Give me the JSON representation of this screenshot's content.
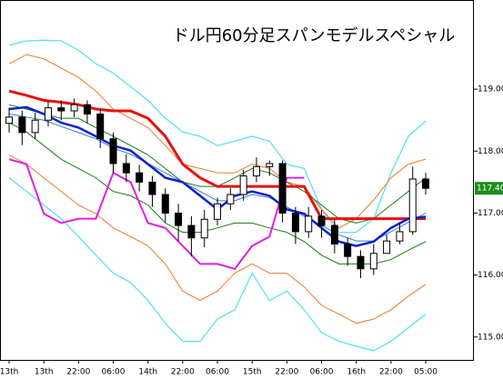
{
  "chart_data": {
    "type": "candlestick",
    "title": "ドル円60分足スパンモデルスペシャル",
    "xlim": [
      -2.1,
      107.1
    ],
    "xticks": [
      {
        "value": 0,
        "label": "13th"
      },
      {
        "value": 8,
        "label": "13th"
      },
      {
        "value": 16,
        "label": "22:00"
      },
      {
        "value": 24,
        "label": "06:00"
      },
      {
        "value": 32,
        "label": "14th"
      },
      {
        "value": 40,
        "label": "22:00"
      },
      {
        "value": 48,
        "label": "06:00"
      },
      {
        "value": 56,
        "label": "15th"
      },
      {
        "value": 64,
        "label": "22:00"
      },
      {
        "value": 72,
        "label": "06:00"
      },
      {
        "value": 80,
        "label": "16th"
      },
      {
        "value": 88,
        "label": "22:00"
      },
      {
        "value": 96,
        "label": "05:00"
      }
    ],
    "ylim": [
      114.63,
      120.44
    ],
    "yticks": [
      {
        "value": 115,
        "label": "115.00"
      },
      {
        "value": 116,
        "label": "116.00"
      },
      {
        "value": 117,
        "label": "117.00"
      },
      {
        "value": 118,
        "label": "118.00"
      },
      {
        "value": 119,
        "label": "119.00"
      }
    ],
    "last_price": {
      "value": 117.4,
      "label": "117.40",
      "color": "#1e8c1e"
    },
    "x": [
      0,
      4,
      8,
      12,
      16,
      20,
      24,
      28,
      32,
      36,
      40,
      44,
      48,
      52,
      56,
      60,
      64,
      68,
      72,
      76,
      80,
      84,
      88,
      92,
      96
    ],
    "series": [
      {
        "color": "#5fe0f0",
        "width": 1.3,
        "values": [
          119.71,
          119.78,
          119.79,
          119.78,
          119.63,
          119.41,
          119.26,
          119.04,
          118.82,
          118.53,
          118.31,
          118.24,
          118.09,
          118.16,
          118.24,
          118.16,
          117.79,
          117.72,
          117.06,
          116.69,
          116.69,
          116.91,
          117.65,
          118.24,
          118.49
        ]
      },
      {
        "color": "#5fe0f0",
        "width": 1.3,
        "values": [
          117.57,
          117.35,
          117.13,
          116.91,
          116.62,
          116.32,
          116.03,
          115.88,
          115.59,
          115.22,
          114.93,
          114.93,
          115.29,
          115.44,
          116.03,
          115.59,
          115.74,
          115.44,
          115.07,
          114.93,
          114.85,
          114.78,
          114.93,
          115.15,
          115.37
        ]
      },
      {
        "color": "#f07830",
        "width": 1,
        "values": [
          119.41,
          119.56,
          119.49,
          119.34,
          119.19,
          118.97,
          118.68,
          118.53,
          118.38,
          118.09,
          117.79,
          117.72,
          117.65,
          117.65,
          117.79,
          117.72,
          117.5,
          117.43,
          117.06,
          116.76,
          116.91,
          117.21,
          117.57,
          117.79,
          117.87
        ]
      },
      {
        "color": "#f07830",
        "width": 1,
        "values": [
          117.94,
          117.79,
          117.57,
          117.35,
          117.13,
          116.99,
          116.76,
          116.62,
          116.47,
          116.18,
          115.74,
          115.59,
          115.74,
          116.03,
          116.18,
          116.03,
          116.03,
          115.81,
          115.51,
          115.37,
          115.22,
          115.29,
          115.44,
          115.66,
          115.85
        ]
      },
      {
        "color": "#1a7a1a",
        "width": 1,
        "values": [
          118.75,
          118.68,
          118.6,
          118.53,
          118.53,
          118.38,
          118.24,
          118.09,
          117.94,
          117.72,
          117.5,
          117.43,
          117.43,
          117.57,
          117.72,
          117.65,
          117.5,
          117.35,
          117.13,
          116.91,
          116.84,
          116.91,
          117.13,
          117.35,
          117.57
        ]
      },
      {
        "color": "#1a7a1a",
        "width": 1,
        "values": [
          118.46,
          118.31,
          118.09,
          117.87,
          117.72,
          117.57,
          117.35,
          117.28,
          117.13,
          116.84,
          116.69,
          116.69,
          116.76,
          116.84,
          116.84,
          116.76,
          116.69,
          116.54,
          116.32,
          116.18,
          116.18,
          116.18,
          116.25,
          116.4,
          116.54
        ]
      },
      {
        "color": "#e81010",
        "width": 3,
        "values": [
          118.97,
          118.9,
          118.82,
          118.79,
          118.75,
          118.68,
          118.65,
          118.65,
          118.53,
          118.24,
          117.79,
          117.57,
          117.43,
          117.43,
          117.43,
          117.43,
          117.43,
          117.43,
          116.91,
          116.91,
          116.91,
          116.91,
          116.91,
          116.91,
          116.91
        ]
      },
      {
        "color": "#3a7ad8",
        "width": 1,
        "values": [
          118.6,
          118.55,
          118.5,
          118.4,
          118.3,
          118.2,
          118.05,
          117.95,
          117.8,
          117.65,
          117.5,
          117.35,
          117.2,
          117.2,
          117.3,
          117.25,
          117.1,
          116.95,
          116.8,
          116.65,
          116.55,
          116.55,
          116.7,
          116.85,
          117.0
        ]
      },
      {
        "color": "#1020d0",
        "width": 2.5,
        "values": [
          118.68,
          118.71,
          118.6,
          118.46,
          118.38,
          118.24,
          118.09,
          118.01,
          117.79,
          117.57,
          117.5,
          117.28,
          117.06,
          117.28,
          117.35,
          117.28,
          117.06,
          116.99,
          116.76,
          116.54,
          116.47,
          116.54,
          116.76,
          116.91,
          116.94
        ]
      },
      {
        "color": "#e020e0",
        "width": 2,
        "values": [
          117.87,
          117.79,
          116.99,
          116.84,
          116.91,
          116.91,
          117.65,
          117.5,
          116.84,
          116.76,
          116.47,
          116.18,
          116.18,
          116.1,
          116.47,
          116.62,
          117.57,
          117.57,
          null,
          null,
          null,
          null,
          null,
          null,
          null
        ]
      }
    ],
    "candles": {
      "x": [
        0,
        3,
        6,
        9,
        12,
        15,
        18,
        21,
        24,
        27,
        30,
        33,
        36,
        39,
        42,
        45,
        48,
        51,
        54,
        57,
        60,
        63,
        66,
        69,
        72,
        75,
        78,
        81,
        84,
        87,
        90,
        93,
        96
      ],
      "open": [
        118.45,
        118.55,
        118.3,
        118.5,
        118.7,
        118.65,
        118.75,
        118.6,
        118.2,
        117.8,
        117.65,
        117.5,
        117.3,
        117.0,
        116.8,
        116.6,
        116.9,
        117.15,
        117.3,
        117.6,
        117.75,
        117.8,
        117.0,
        116.7,
        116.95,
        116.8,
        116.5,
        116.3,
        116.1,
        116.35,
        116.55,
        116.7,
        117.55
      ],
      "high": [
        118.7,
        118.65,
        118.62,
        118.8,
        118.82,
        118.85,
        118.82,
        118.68,
        118.3,
        117.95,
        117.78,
        117.6,
        117.4,
        117.15,
        116.95,
        117.05,
        117.25,
        117.4,
        117.7,
        117.9,
        117.85,
        117.85,
        117.1,
        117.1,
        117.05,
        116.9,
        116.6,
        116.4,
        116.5,
        116.65,
        116.85,
        117.75,
        117.65
      ],
      "low": [
        118.3,
        118.1,
        118.2,
        118.4,
        118.5,
        118.55,
        118.45,
        118.05,
        117.65,
        117.5,
        117.35,
        117.1,
        116.85,
        116.55,
        116.3,
        116.45,
        116.8,
        117.05,
        117.2,
        117.5,
        117.6,
        116.85,
        116.5,
        116.6,
        116.6,
        116.35,
        116.15,
        115.95,
        116.0,
        116.45,
        116.5,
        116.65,
        117.3
      ],
      "close": [
        118.55,
        118.3,
        118.5,
        118.7,
        118.65,
        118.75,
        118.6,
        118.2,
        117.8,
        117.65,
        117.5,
        117.3,
        117.0,
        116.8,
        116.6,
        116.9,
        117.15,
        117.3,
        117.6,
        117.75,
        117.8,
        117.0,
        116.7,
        116.95,
        116.8,
        116.5,
        116.3,
        116.1,
        116.35,
        116.55,
        116.7,
        117.55,
        117.4
      ]
    }
  }
}
